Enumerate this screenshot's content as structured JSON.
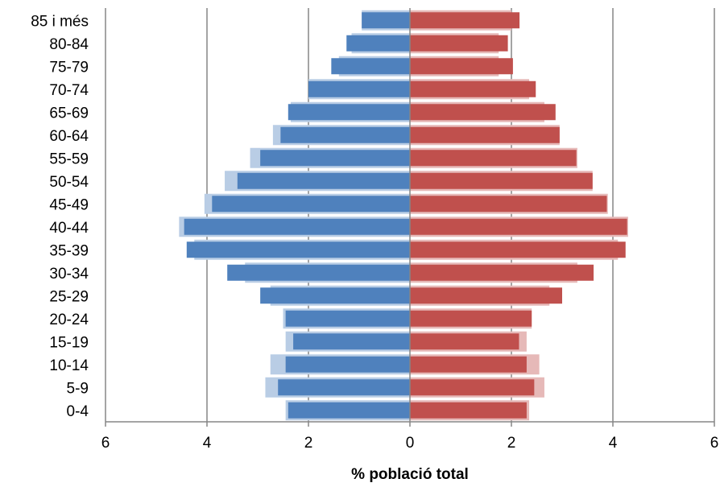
{
  "chart_data": {
    "type": "bar",
    "orientation": "horizontal",
    "chart_subtype": "population-pyramid",
    "xlabel": "% població total",
    "xlim": [
      -6,
      6
    ],
    "x_ticks": [
      -6,
      -4,
      -2,
      0,
      2,
      4,
      6
    ],
    "x_tick_labels": [
      "6",
      "4",
      "2",
      "0",
      "2",
      "4",
      "6"
    ],
    "grid": "vertical",
    "categories": [
      "0-4",
      "5-9",
      "10-14",
      "15-19",
      "20-24",
      "25-29",
      "30-34",
      "35-39",
      "40-44",
      "45-49",
      "50-54",
      "55-59",
      "60-64",
      "65-69",
      "70-74",
      "75-79",
      "80-84",
      "85 i més"
    ],
    "series": [
      {
        "side": "left",
        "role": "background",
        "color": "#b9cde5",
        "values": [
          2.45,
          2.85,
          2.75,
          2.45,
          2.5,
          2.75,
          3.25,
          4.25,
          4.55,
          4.05,
          3.65,
          3.15,
          2.7,
          2.35,
          2.0,
          1.4,
          1.15,
          0.95
        ]
      },
      {
        "side": "left",
        "role": "foreground",
        "color": "#4f81bd",
        "values": [
          2.4,
          2.6,
          2.45,
          2.3,
          2.45,
          2.95,
          3.6,
          4.4,
          4.45,
          3.9,
          3.4,
          2.95,
          2.55,
          2.4,
          2.0,
          1.55,
          1.25,
          0.95
        ]
      },
      {
        "side": "right",
        "role": "background",
        "color": "#e6b9b8",
        "values": [
          2.35,
          2.65,
          2.55,
          2.3,
          2.4,
          2.75,
          3.3,
          4.1,
          4.3,
          3.9,
          3.6,
          3.3,
          2.95,
          2.65,
          2.35,
          1.75,
          1.75,
          2.0
        ]
      },
      {
        "side": "right",
        "role": "foreground",
        "color": "#c0504d",
        "values": [
          2.3,
          2.45,
          2.3,
          2.15,
          2.4,
          3.0,
          3.62,
          4.25,
          4.28,
          3.88,
          3.6,
          3.28,
          2.95,
          2.87,
          2.48,
          2.03,
          1.93,
          2.16
        ]
      }
    ]
  }
}
